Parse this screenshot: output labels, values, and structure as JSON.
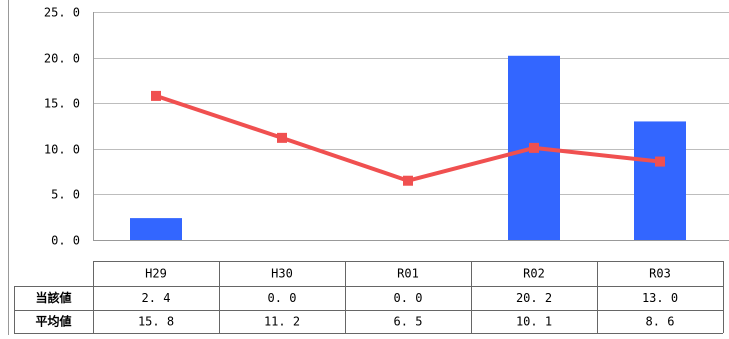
{
  "chart_data": {
    "type": "bar",
    "categories": [
      "H29",
      "H30",
      "R01",
      "R02",
      "R03"
    ],
    "series": [
      {
        "name": "当該値",
        "kind": "bar",
        "values": [
          2.4,
          0.0,
          0.0,
          20.2,
          13.0
        ],
        "display": [
          "2. 4",
          "0. 0",
          "0. 0",
          "20. 2",
          "13. 0"
        ],
        "color": "#3366ff"
      },
      {
        "name": "平均値",
        "kind": "line",
        "values": [
          15.8,
          11.2,
          6.5,
          10.1,
          8.6
        ],
        "display": [
          "15. 8",
          "11. 2",
          "6. 5",
          "10. 1",
          "8. 6"
        ],
        "color": "#f05050"
      }
    ],
    "y_ticks": [
      0,
      5,
      10,
      15,
      20,
      25
    ],
    "y_tick_labels": [
      "0. 0",
      "5. 0",
      "10. 0",
      "15. 0",
      "20. 0",
      "25. 0"
    ],
    "ylim": [
      0,
      25
    ],
    "grid": true,
    "legend": "data-table-below"
  }
}
